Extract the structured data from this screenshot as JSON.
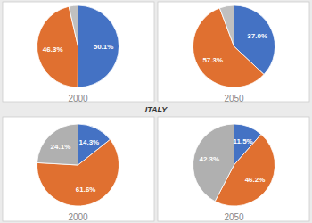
{
  "chart_data": [
    {
      "type": "pie",
      "title": "2000",
      "values": [
        50.1,
        46.3,
        3.6
      ],
      "value_labels": [
        "50.1%",
        "46.3%",
        null
      ],
      "colors": [
        "#4472c4",
        "#e07030",
        "#c0c0c0"
      ],
      "data_labels": true
    },
    {
      "type": "pie",
      "title": "2050",
      "values": [
        37.0,
        57.3,
        5.7
      ],
      "value_labels": [
        "37.0%",
        "57.3%",
        null
      ],
      "colors": [
        "#4472c4",
        "#e07030",
        "#c0c0c0"
      ],
      "data_labels": true
    },
    {
      "type": "pie",
      "title": "2000",
      "annotations": [
        "ITALY"
      ],
      "values": [
        14.3,
        61.6,
        24.1
      ],
      "value_labels": [
        "14.3%",
        "61.6%",
        "24.1%"
      ],
      "colors": [
        "#4472c4",
        "#e07030",
        "#b0b0b0"
      ],
      "data_labels": true
    },
    {
      "type": "pie",
      "title": "2050",
      "values": [
        11.5,
        46.2,
        42.3
      ],
      "value_labels": [
        "11.5%",
        "46.2%",
        "42.3%"
      ],
      "colors": [
        "#4472c4",
        "#e07030",
        "#b0b0b0"
      ],
      "data_labels": true
    }
  ]
}
